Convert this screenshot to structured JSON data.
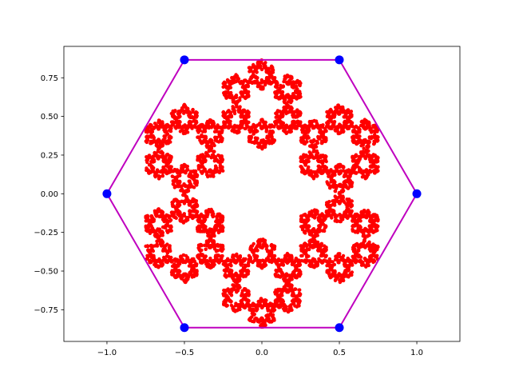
{
  "chart_data": {
    "type": "scatter",
    "title": "",
    "xlabel": "",
    "ylabel": "",
    "xlim": [
      -1.278,
      1.278
    ],
    "ylim": [
      -0.955,
      0.953
    ],
    "grid": false,
    "x_ticks": [
      -1.0,
      -0.5,
      0.0,
      0.5,
      1.0
    ],
    "x_tick_labels": [
      "−1.0",
      "−0.5",
      "0.0",
      "0.5",
      "1.0"
    ],
    "y_ticks": [
      -0.75,
      -0.5,
      -0.25,
      0.0,
      0.25,
      0.5,
      0.75
    ],
    "y_tick_labels": [
      "−0.75",
      "−0.50",
      "−0.25",
      "0.00",
      "0.25",
      "0.50",
      "0.75"
    ],
    "series": [
      {
        "kind": "line",
        "color": "#bf00bf",
        "x": [
          1.0,
          0.5,
          -0.5,
          -1.0,
          -0.5,
          0.5,
          1.0
        ],
        "y": [
          0.0,
          0.866,
          0.866,
          0.0,
          -0.866,
          -0.866,
          0.0
        ]
      },
      {
        "kind": "points",
        "color": "#0000ff",
        "x": [
          1.0,
          0.5,
          -0.5,
          -1.0,
          -0.5,
          0.5
        ],
        "y": [
          0.0,
          0.866,
          0.866,
          0.0,
          -0.866,
          -0.866
        ]
      },
      {
        "kind": "fractal-points",
        "color": "#ff0000",
        "description_visible": false
      }
    ]
  }
}
